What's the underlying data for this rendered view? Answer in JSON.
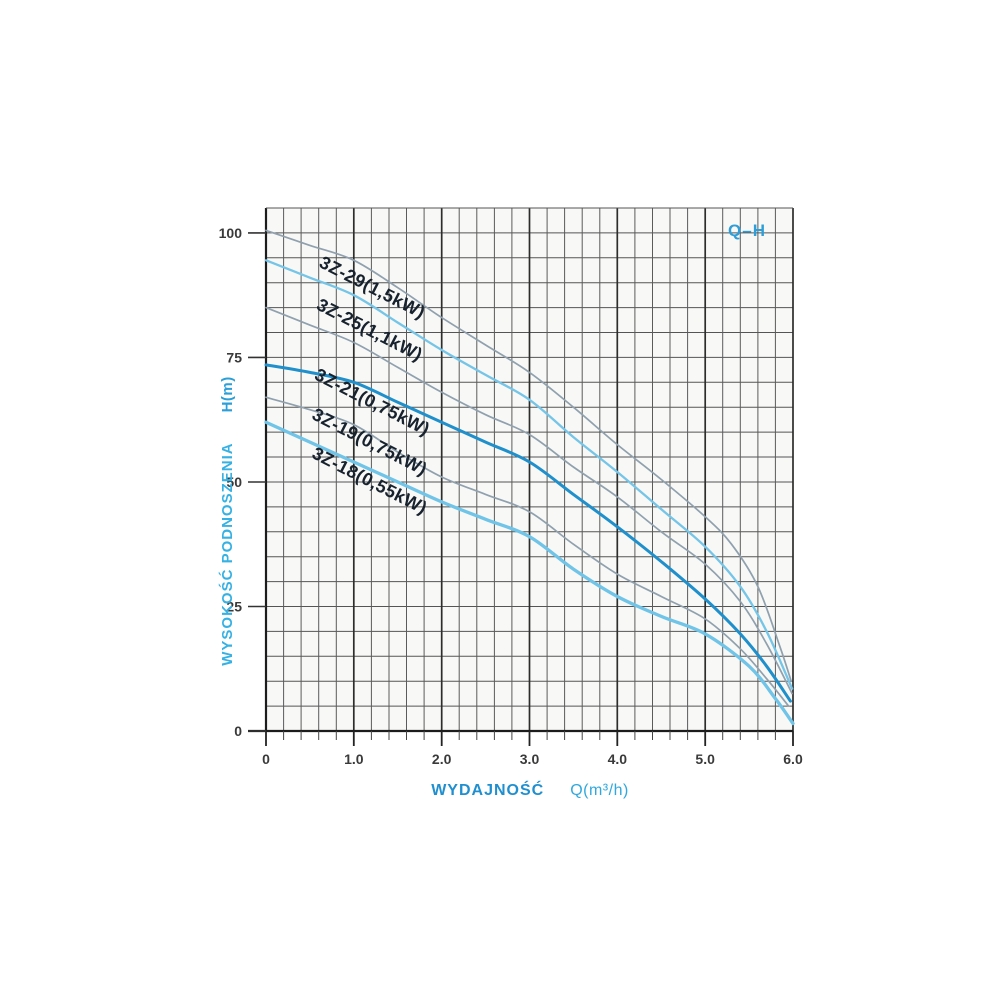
{
  "title_badge": "Q–H",
  "chart_data": {
    "type": "line",
    "title": "Q–H",
    "x_axis": {
      "label_main": "WYDAJNOŚĆ",
      "label_unit": "Q(m³/h)",
      "min": 0,
      "max": 6,
      "minor_step": 0.2,
      "major_step": 1,
      "tick_values": [
        0,
        1,
        2,
        3,
        4,
        5,
        6
      ],
      "tick_labels": [
        "0",
        "1.0",
        "2.0",
        "3.0",
        "4.0",
        "5.0",
        "6.0"
      ]
    },
    "y_axis": {
      "label_main": "WYSOKOŚĆ PODNOSZENIA",
      "label_unit": "H(m)",
      "min": 0,
      "max": 105,
      "minor_step": 5,
      "tick_values": [
        0,
        25,
        50,
        75,
        100
      ],
      "tick_labels": [
        "0",
        "25",
        "50",
        "75",
        "100"
      ]
    },
    "grid": {
      "on": true,
      "minor_color": "#5b5b5b",
      "major_color": "#2d2d2d",
      "h_color": "#555555",
      "plot_bg": "#f8f8f6"
    },
    "axis_color": "#1c1c1c",
    "tick_label_color": "#3a3a3a",
    "series": [
      {
        "id": "curve-1",
        "color": "#8fa0ae",
        "width": 1.7,
        "points": [
          [
            0,
            100.5
          ],
          [
            0.5,
            97.5
          ],
          [
            1,
            94.5
          ],
          [
            1.5,
            89
          ],
          [
            2,
            83
          ],
          [
            2.5,
            77.5
          ],
          [
            3,
            72
          ],
          [
            3.5,
            65
          ],
          [
            4,
            57.5
          ],
          [
            4.5,
            50.5
          ],
          [
            5,
            43
          ],
          [
            5.3,
            37.5
          ],
          [
            5.6,
            29
          ],
          [
            5.85,
            17
          ],
          [
            5.98,
            10
          ]
        ]
      },
      {
        "id": "curve-2",
        "color": "#74c5e8",
        "width": 2.3,
        "points": [
          [
            0,
            94.5
          ],
          [
            0.5,
            91
          ],
          [
            1,
            87.5
          ],
          [
            1.5,
            82
          ],
          [
            2,
            76.5
          ],
          [
            2.5,
            71.5
          ],
          [
            3,
            66.5
          ],
          [
            3.5,
            59
          ],
          [
            4,
            52
          ],
          [
            4.5,
            44.5
          ],
          [
            5,
            37
          ],
          [
            5.4,
            29
          ],
          [
            5.7,
            20
          ],
          [
            5.99,
            8.5
          ]
        ]
      },
      {
        "id": "curve-3",
        "color": "#8fa0ae",
        "width": 1.7,
        "points": [
          [
            0,
            85
          ],
          [
            0.5,
            81.5
          ],
          [
            1,
            78
          ],
          [
            1.5,
            73
          ],
          [
            2,
            68
          ],
          [
            2.5,
            63.5
          ],
          [
            3,
            59.5
          ],
          [
            3.5,
            53
          ],
          [
            4,
            47
          ],
          [
            4.5,
            40
          ],
          [
            5,
            33.5
          ],
          [
            5.4,
            26
          ],
          [
            5.7,
            17.5
          ],
          [
            5.99,
            7.5
          ]
        ]
      },
      {
        "id": "curve-4",
        "color": "#1f90cc",
        "width": 3.0,
        "points": [
          [
            0,
            73.5
          ],
          [
            0.5,
            72
          ],
          [
            1,
            70
          ],
          [
            1.5,
            66
          ],
          [
            2,
            62
          ],
          [
            2.5,
            58
          ],
          [
            3,
            54
          ],
          [
            3.5,
            47.5
          ],
          [
            4,
            41
          ],
          [
            4.5,
            34
          ],
          [
            5,
            26.5
          ],
          [
            5.4,
            19.5
          ],
          [
            5.7,
            13
          ],
          [
            5.97,
            6
          ]
        ]
      },
      {
        "id": "curve-5",
        "color": "#8fa0ae",
        "width": 1.7,
        "points": [
          [
            0,
            67
          ],
          [
            0.5,
            64.5
          ],
          [
            1,
            61.5
          ],
          [
            1.5,
            56
          ],
          [
            2,
            51
          ],
          [
            2.5,
            47.5
          ],
          [
            3,
            44
          ],
          [
            3.5,
            37.5
          ],
          [
            4,
            31.5
          ],
          [
            4.5,
            27
          ],
          [
            5,
            22.5
          ],
          [
            5.4,
            16.5
          ],
          [
            5.7,
            10.5
          ],
          [
            5.95,
            5
          ]
        ]
      },
      {
        "id": "curve-6",
        "color": "#70c4e8",
        "width": 3.3,
        "points": [
          [
            0,
            62
          ],
          [
            0.5,
            58
          ],
          [
            1,
            54
          ],
          [
            1.5,
            50
          ],
          [
            2,
            46
          ],
          [
            2.5,
            42.5
          ],
          [
            3,
            39
          ],
          [
            3.5,
            32.5
          ],
          [
            4,
            27
          ],
          [
            4.5,
            23
          ],
          [
            5,
            19.5
          ],
          [
            5.5,
            13
          ],
          [
            5.8,
            6.5
          ],
          [
            6,
            1.5
          ]
        ]
      }
    ],
    "curve_labels": [
      {
        "text": "3Z-29(1,5kW)",
        "q": 1.18,
        "h": 88.0,
        "angle": 27
      },
      {
        "text": "3Z-25(1,1kW)",
        "q": 1.15,
        "h": 79.5,
        "angle": 27
      },
      {
        "text": "3Z-21(0,75kW)",
        "q": 1.18,
        "h": 65.0,
        "angle": 27
      },
      {
        "text": "3Z-19(0,75kW)",
        "q": 1.15,
        "h": 57.0,
        "angle": 27
      },
      {
        "text": "3Z-18(0,55kW)",
        "q": 1.15,
        "h": 49.2,
        "angle": 27
      }
    ],
    "curve_label_color": "#17222e",
    "legend_position": "none"
  }
}
